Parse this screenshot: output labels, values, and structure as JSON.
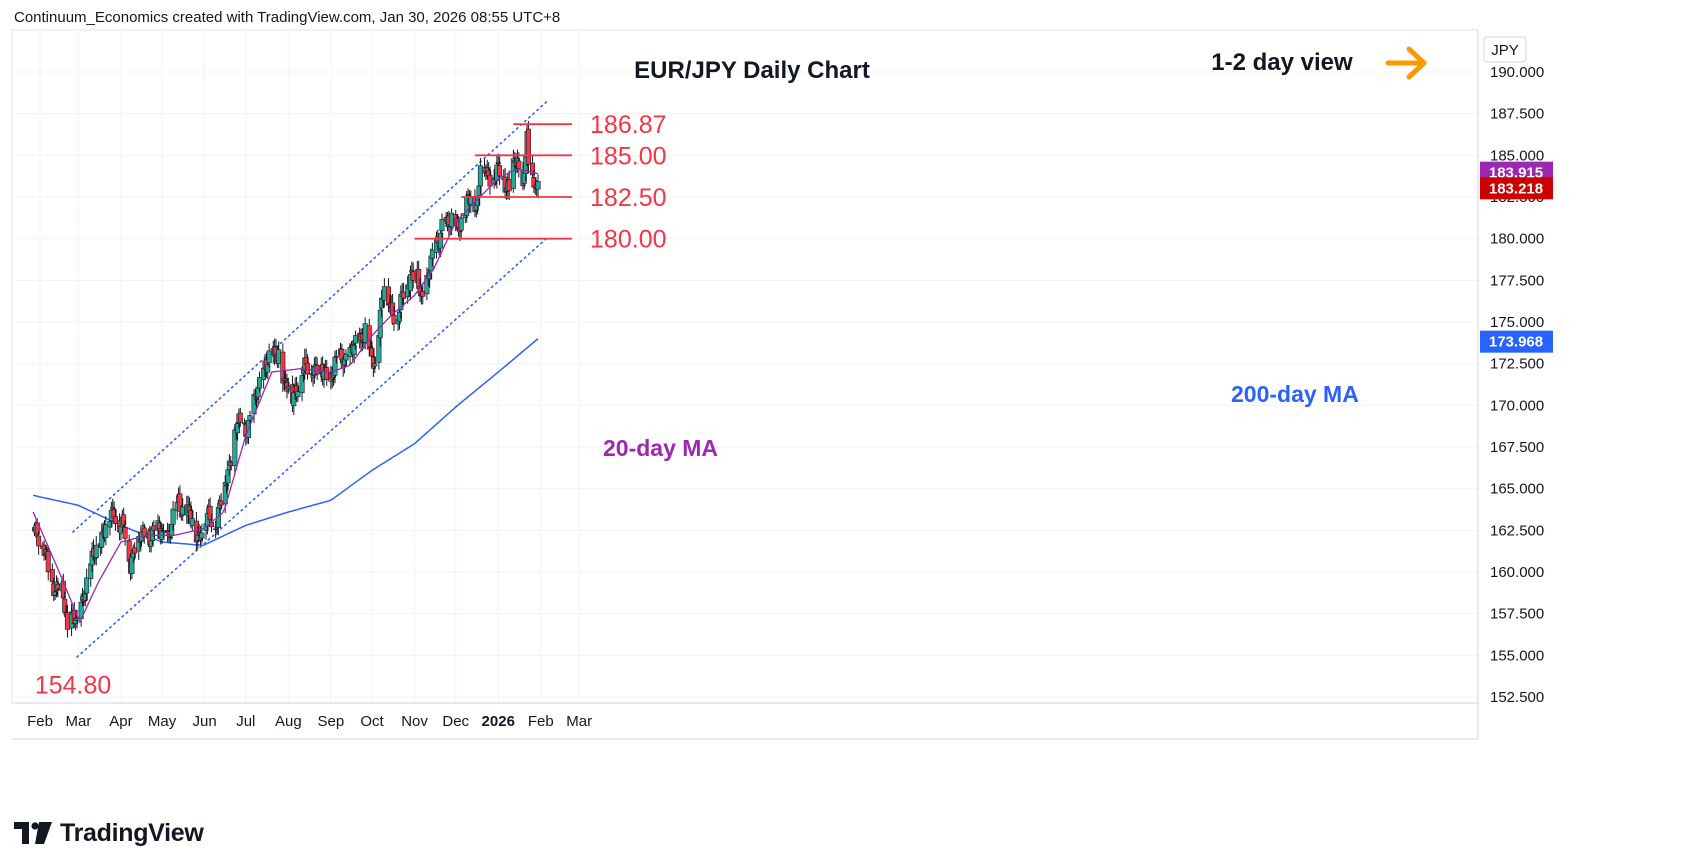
{
  "header": {
    "note": "Continuum_Economics created with TradingView.com, Jan 30, 2026 08:55 UTC+8"
  },
  "brand": {
    "name": "TradingView"
  },
  "colors": {
    "up": "#22ab94",
    "down": "#f23645",
    "ma20": "#9c27b0",
    "ma200": "#2962ff",
    "level": "#f23645",
    "channel": "#2962ff",
    "arrow": "#ff9800",
    "ma20_badge": "#9c27b0",
    "price_badge": "#cc0000",
    "ma200_badge": "#2962ff"
  },
  "chart_data": {
    "type": "candlestick",
    "title": "EUR/JPY Daily Chart",
    "view_label": "1-2 day view",
    "currency": "JPY",
    "y_ticks": [
      "190.000",
      "187.500",
      "185.000",
      "182.500",
      "180.000",
      "177.500",
      "175.000",
      "172.500",
      "170.000",
      "167.500",
      "165.000",
      "162.500",
      "160.000",
      "157.500",
      "155.000",
      "152.500"
    ],
    "x_ticks": [
      {
        "label": "Feb",
        "date": "2025-02-01"
      },
      {
        "label": "Mar",
        "date": "2025-03-01"
      },
      {
        "label": "Apr",
        "date": "2025-04-01"
      },
      {
        "label": "May",
        "date": "2025-05-01"
      },
      {
        "label": "Jun",
        "date": "2025-06-01"
      },
      {
        "label": "Jul",
        "date": "2025-07-01"
      },
      {
        "label": "Aug",
        "date": "2025-08-01"
      },
      {
        "label": "Sep",
        "date": "2025-09-01"
      },
      {
        "label": "Oct",
        "date": "2025-10-01"
      },
      {
        "label": "Nov",
        "date": "2025-11-01"
      },
      {
        "label": "Dec",
        "date": "2025-12-01"
      },
      {
        "label": "2026",
        "date": "2026-01-01"
      },
      {
        "label": "Feb",
        "date": "2026-02-01"
      },
      {
        "label": "Mar",
        "date": "2026-03-01"
      }
    ],
    "levels": [
      {
        "label": "186.87",
        "value": 186.87,
        "from": "2026-01-12",
        "to": "2026-01-30"
      },
      {
        "label": "185.00",
        "value": 185.0,
        "from": "2025-12-15",
        "to": "2026-01-30"
      },
      {
        "label": "182.50",
        "value": 182.5,
        "from": "2025-12-05",
        "to": "2026-01-30"
      },
      {
        "label": "180.00",
        "value": 180.0,
        "from": "2025-11-01",
        "to": "2026-01-30"
      }
    ],
    "low_label": {
      "text": "154.80",
      "value": 154.8,
      "date": "2025-02-28"
    },
    "channel": {
      "upper": [
        {
          "date": "2025-02-25",
          "value": 162.4
        },
        {
          "date": "2026-02-05",
          "value": 188.2
        }
      ],
      "lower": [
        {
          "date": "2025-02-28",
          "value": 154.9
        },
        {
          "date": "2026-02-05",
          "value": 180.0
        }
      ]
    },
    "ma20_label": "20-day MA",
    "ma200_label": "200-day MA",
    "ma20_key": [
      {
        "date": "2025-01-27",
        "value": 163.6
      },
      {
        "date": "2025-02-15",
        "value": 160.0
      },
      {
        "date": "2025-03-02",
        "value": 157.0
      },
      {
        "date": "2025-03-15",
        "value": 159.3
      },
      {
        "date": "2025-04-01",
        "value": 161.8
      },
      {
        "date": "2025-04-20",
        "value": 162.2
      },
      {
        "date": "2025-05-10",
        "value": 162.2
      },
      {
        "date": "2025-05-31",
        "value": 162.6
      },
      {
        "date": "2025-06-15",
        "value": 163.6
      },
      {
        "date": "2025-07-01",
        "value": 168.2
      },
      {
        "date": "2025-07-20",
        "value": 172.0
      },
      {
        "date": "2025-08-10",
        "value": 172.2
      },
      {
        "date": "2025-09-01",
        "value": 172.0
      },
      {
        "date": "2025-09-15",
        "value": 172.4
      },
      {
        "date": "2025-09-30",
        "value": 174.1
      },
      {
        "date": "2025-10-15",
        "value": 175.4
      },
      {
        "date": "2025-11-01",
        "value": 176.6
      },
      {
        "date": "2025-11-15",
        "value": 178.2
      },
      {
        "date": "2025-12-01",
        "value": 181.0
      },
      {
        "date": "2025-12-15",
        "value": 182.2
      },
      {
        "date": "2026-01-01",
        "value": 183.6
      },
      {
        "date": "2026-01-15",
        "value": 184.2
      },
      {
        "date": "2026-01-30",
        "value": 183.9
      }
    ],
    "ma200_key": [
      {
        "date": "2025-01-27",
        "value": 164.6
      },
      {
        "date": "2025-03-01",
        "value": 164.0
      },
      {
        "date": "2025-04-01",
        "value": 162.8
      },
      {
        "date": "2025-05-01",
        "value": 161.8
      },
      {
        "date": "2025-05-31",
        "value": 161.6
      },
      {
        "date": "2025-07-01",
        "value": 162.8
      },
      {
        "date": "2025-08-01",
        "value": 163.6
      },
      {
        "date": "2025-09-01",
        "value": 164.3
      },
      {
        "date": "2025-10-01",
        "value": 166.1
      },
      {
        "date": "2025-11-01",
        "value": 167.7
      },
      {
        "date": "2025-12-01",
        "value": 169.9
      },
      {
        "date": "2026-01-01",
        "value": 172.0
      },
      {
        "date": "2026-01-30",
        "value": 174.0
      }
    ],
    "close_key": [
      {
        "date": "2025-01-27",
        "value": 163.2
      },
      {
        "date": "2025-02-06",
        "value": 160.6
      },
      {
        "date": "2025-02-12",
        "value": 159.0
      },
      {
        "date": "2025-02-18",
        "value": 158.6
      },
      {
        "date": "2025-02-21",
        "value": 156.6
      },
      {
        "date": "2025-02-25",
        "value": 157.5
      },
      {
        "date": "2025-02-28",
        "value": 156.5
      },
      {
        "date": "2025-03-05",
        "value": 158.9
      },
      {
        "date": "2025-03-12",
        "value": 160.8
      },
      {
        "date": "2025-03-19",
        "value": 162.5
      },
      {
        "date": "2025-03-27",
        "value": 163.6
      },
      {
        "date": "2025-04-03",
        "value": 162.6
      },
      {
        "date": "2025-04-08",
        "value": 160.4
      },
      {
        "date": "2025-04-11",
        "value": 161.8
      },
      {
        "date": "2025-04-24",
        "value": 162.4
      },
      {
        "date": "2025-05-06",
        "value": 162.2
      },
      {
        "date": "2025-05-13",
        "value": 164.2
      },
      {
        "date": "2025-05-20",
        "value": 163.4
      },
      {
        "date": "2025-05-27",
        "value": 162.2
      },
      {
        "date": "2025-06-03",
        "value": 163.2
      },
      {
        "date": "2025-06-10",
        "value": 163.2
      },
      {
        "date": "2025-06-17",
        "value": 165.6
      },
      {
        "date": "2025-06-24",
        "value": 168.8
      },
      {
        "date": "2025-07-01",
        "value": 168.6
      },
      {
        "date": "2025-07-08",
        "value": 170.2
      },
      {
        "date": "2025-07-15",
        "value": 172.6
      },
      {
        "date": "2025-07-21",
        "value": 172.8
      },
      {
        "date": "2025-07-25",
        "value": 173.4
      },
      {
        "date": "2025-07-29",
        "value": 171.2
      },
      {
        "date": "2025-08-04",
        "value": 170.6
      },
      {
        "date": "2025-08-11",
        "value": 172.0
      },
      {
        "date": "2025-08-18",
        "value": 172.4
      },
      {
        "date": "2025-08-25",
        "value": 172.0
      },
      {
        "date": "2025-09-01",
        "value": 171.8
      },
      {
        "date": "2025-09-08",
        "value": 172.9
      },
      {
        "date": "2025-09-15",
        "value": 173.0
      },
      {
        "date": "2025-09-22",
        "value": 174.0
      },
      {
        "date": "2025-09-26",
        "value": 174.6
      },
      {
        "date": "2025-09-30",
        "value": 172.8
      },
      {
        "date": "2025-10-03",
        "value": 172.6
      },
      {
        "date": "2025-10-07",
        "value": 175.6
      },
      {
        "date": "2025-10-10",
        "value": 177.1
      },
      {
        "date": "2025-10-15",
        "value": 175.8
      },
      {
        "date": "2025-10-20",
        "value": 175.4
      },
      {
        "date": "2025-10-24",
        "value": 176.6
      },
      {
        "date": "2025-10-29",
        "value": 178.0
      },
      {
        "date": "2025-11-03",
        "value": 177.6
      },
      {
        "date": "2025-11-06",
        "value": 176.2
      },
      {
        "date": "2025-11-12",
        "value": 178.4
      },
      {
        "date": "2025-11-18",
        "value": 179.6
      },
      {
        "date": "2025-11-21",
        "value": 181.0
      },
      {
        "date": "2025-11-26",
        "value": 180.8
      },
      {
        "date": "2025-12-03",
        "value": 181.0
      },
      {
        "date": "2025-12-08",
        "value": 181.6
      },
      {
        "date": "2025-12-12",
        "value": 182.6
      },
      {
        "date": "2025-12-17",
        "value": 182.2
      },
      {
        "date": "2025-12-19",
        "value": 184.6
      },
      {
        "date": "2025-12-24",
        "value": 183.8
      },
      {
        "date": "2025-12-31",
        "value": 184.0
      },
      {
        "date": "2026-01-06",
        "value": 183.4
      },
      {
        "date": "2026-01-09",
        "value": 183.2
      },
      {
        "date": "2026-01-13",
        "value": 184.6
      },
      {
        "date": "2026-01-15",
        "value": 184.2
      },
      {
        "date": "2026-01-19",
        "value": 183.0
      },
      {
        "date": "2026-01-21",
        "value": 185.6
      },
      {
        "date": "2026-01-22",
        "value": 186.4
      },
      {
        "date": "2026-01-23",
        "value": 184.0
      },
      {
        "date": "2026-01-26",
        "value": 183.2
      },
      {
        "date": "2026-01-27",
        "value": 182.6
      },
      {
        "date": "2026-01-28",
        "value": 183.4
      },
      {
        "date": "2026-01-30",
        "value": 183.2
      }
    ],
    "badges": [
      {
        "label": "183.915",
        "series": "20-day MA"
      },
      {
        "label": "183.218",
        "series": "EUR/JPY"
      },
      {
        "label": "173.968",
        "series": "200-day MA"
      }
    ]
  }
}
